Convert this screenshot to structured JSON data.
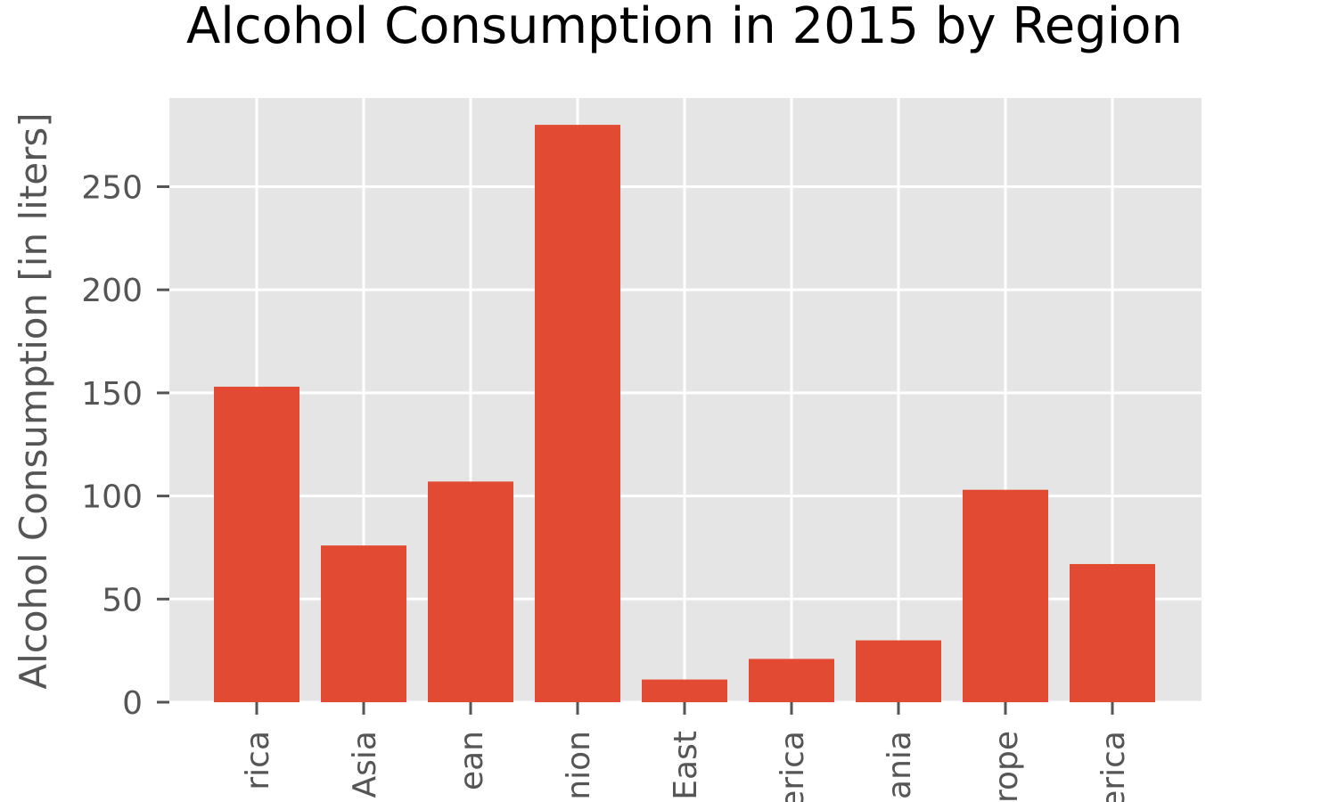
{
  "chart_data": {
    "type": "bar",
    "title": "Alcohol Consumption in 2015 by Region",
    "xlabel": "",
    "ylabel": "Alcohol Consumption [in liters]",
    "categories": [
      "rica",
      "Asia",
      "ean",
      "nion",
      "East",
      "erica",
      "ania",
      "rope",
      "erica"
    ],
    "values": [
      153,
      76,
      107,
      280,
      11,
      21,
      30,
      103,
      67
    ],
    "ylim": [
      0,
      293
    ],
    "yticks": [
      0,
      50,
      100,
      150,
      200,
      250
    ],
    "ytick_labels": [
      "0",
      "50",
      "100",
      "150",
      "200",
      "250"
    ],
    "grid": true,
    "style": "ggplot",
    "colors": {
      "bar": "#E24A33",
      "plot_background": "#E5E5E5",
      "grid": "#FFFFFF",
      "text": "#555555",
      "title": "#000000"
    }
  }
}
